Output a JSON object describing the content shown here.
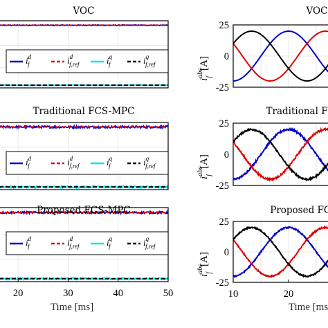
{
  "chart_data": [
    {
      "type": "line",
      "title": "VOC",
      "xlabel": "",
      "xlim": [
        15,
        50
      ],
      "ylim": [
        -18,
        42
      ],
      "xticks": [],
      "yticks": [],
      "grid": true,
      "legend": {
        "placement": "center",
        "entries": [
          "i_f^d",
          "i_{f,ref}^d",
          "i_f^q",
          "i_{f,ref}^q"
        ]
      },
      "series": [
        {
          "name": "i_f^d",
          "color": "#0000cc",
          "dash": "solid",
          "value": 38,
          "noise": 0.35
        },
        {
          "name": "i_{f,ref}^d",
          "color": "#e00000",
          "dash": "dashed",
          "value": 38,
          "noise": 0
        },
        {
          "name": "i_f^q",
          "color": "#00e5ee",
          "dash": "solid",
          "value": -15.6,
          "noise": 0.3
        },
        {
          "name": "i_{f,ref}^q",
          "color": "#000000",
          "dash": "dashed",
          "value": -15.6,
          "noise": 0
        }
      ]
    },
    {
      "type": "line",
      "title": "VOC",
      "ylabel_base": "i",
      "ylabel_sup": "abc",
      "ylabel_sub": "f",
      "ylabel_unit": "[A]",
      "xlim": [
        10,
        30
      ],
      "ylim": [
        -25,
        25
      ],
      "yticks": [
        25,
        0,
        -25
      ],
      "xticks": [],
      "grid": true,
      "waveform": {
        "amplitude": 20,
        "frequency_hz": 50,
        "noise": 0
      },
      "series": [
        {
          "phase": "a",
          "color": "#0000cc",
          "phase_deg": 0
        },
        {
          "phase": "b",
          "color": "#e00000",
          "phase_deg": -120
        },
        {
          "phase": "c",
          "color": "#000000",
          "phase_deg": 120
        }
      ]
    },
    {
      "type": "line",
      "title": "Traditional FCS-MPC",
      "xlabel": "",
      "xlim": [
        15,
        50
      ],
      "ylim": [
        -18,
        42
      ],
      "xticks": [],
      "yticks": [],
      "grid": true,
      "legend": {
        "placement": "center",
        "entries": [
          "i_f^d",
          "i_{f,ref}^d",
          "i_f^q",
          "i_{f,ref}^q"
        ]
      },
      "series": [
        {
          "name": "i_f^d",
          "color": "#0000cc",
          "dash": "solid",
          "value": 38,
          "noise": 1.0
        },
        {
          "name": "i_{f,ref}^d",
          "color": "#e00000",
          "dash": "dashed",
          "value": 38,
          "noise": 0
        },
        {
          "name": "i_f^q",
          "color": "#00e5ee",
          "dash": "solid",
          "value": -15.6,
          "noise": 0.9
        },
        {
          "name": "i_{f,ref}^q",
          "color": "#000000",
          "dash": "dashed",
          "value": -15.6,
          "noise": 0
        }
      ]
    },
    {
      "type": "line",
      "title": "Traditional FCS-MPC",
      "ylabel_base": "i",
      "ylabel_sup": "abc",
      "ylabel_sub": "f",
      "ylabel_unit": "[A]",
      "xlim": [
        10,
        30
      ],
      "ylim": [
        -25,
        25
      ],
      "yticks": [
        25,
        0,
        -25
      ],
      "xticks": [],
      "grid": true,
      "waveform": {
        "amplitude": 20,
        "frequency_hz": 50,
        "noise": 0.7
      },
      "series": [
        {
          "phase": "a",
          "color": "#0000cc",
          "phase_deg": 0
        },
        {
          "phase": "b",
          "color": "#e00000",
          "phase_deg": -120
        },
        {
          "phase": "c",
          "color": "#000000",
          "phase_deg": 120
        }
      ]
    },
    {
      "type": "line",
      "title": "Proposed FCS-MPC",
      "xlabel": "Time [ms]",
      "xlim": [
        15,
        50
      ],
      "ylim": [
        -18,
        42
      ],
      "xticks": [
        20,
        30,
        40,
        50
      ],
      "yticks": [],
      "grid": true,
      "legend": {
        "placement": "center",
        "entries": [
          "i_f^d",
          "i_{f,ref}^d",
          "i_f^q",
          "i_{f,ref}^q"
        ]
      },
      "series": [
        {
          "name": "i_f^d",
          "color": "#0000cc",
          "dash": "solid",
          "value": 38,
          "noise": 0.8
        },
        {
          "name": "i_{f,ref}^d",
          "color": "#e00000",
          "dash": "dashed",
          "value": 38,
          "noise": 0
        },
        {
          "name": "i_f^q",
          "color": "#00e5ee",
          "dash": "solid",
          "value": -15.6,
          "noise": 0.7
        },
        {
          "name": "i_{f,ref}^q",
          "color": "#000000",
          "dash": "dashed",
          "value": -15.6,
          "noise": 0
        }
      ]
    },
    {
      "type": "line",
      "title": "Proposed FCS-MPC",
      "ylabel_base": "i",
      "ylabel_sup": "abc",
      "ylabel_sub": "f",
      "ylabel_unit": "[A]",
      "xlabel": "Time [ms]",
      "xlim": [
        10,
        30
      ],
      "ylim": [
        -25,
        25
      ],
      "yticks": [
        25,
        0,
        -25
      ],
      "xticks": [
        10,
        20
      ],
      "grid": true,
      "waveform": {
        "amplitude": 20,
        "frequency_hz": 50,
        "noise": 0.5
      },
      "series": [
        {
          "phase": "a",
          "color": "#0000cc",
          "phase_deg": 0
        },
        {
          "phase": "b",
          "color": "#e00000",
          "phase_deg": -120
        },
        {
          "phase": "c",
          "color": "#000000",
          "phase_deg": 120
        }
      ]
    }
  ]
}
